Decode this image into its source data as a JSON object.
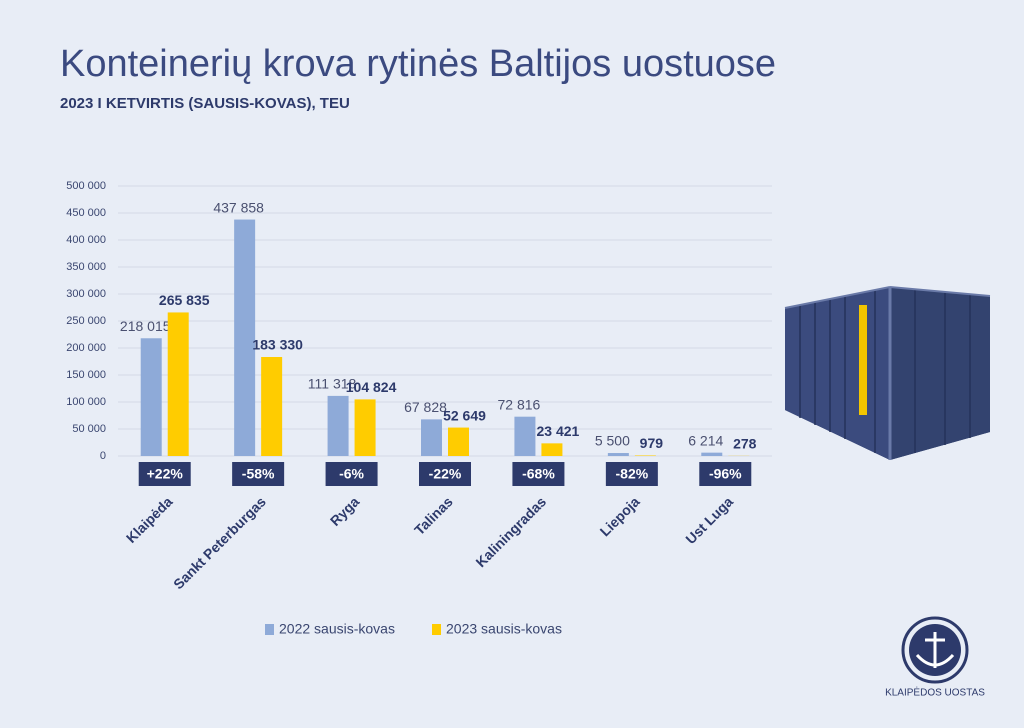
{
  "chart_data": {
    "type": "bar",
    "title": "Konteinerių krova rytinės Baltijos uostuose",
    "subtitle": "2023 I KETVIRTIS (SAUSIS-KOVAS), TEU",
    "categories": [
      "Klaipėda",
      "Sankt Peterburgas",
      "Ryga",
      "Talinas",
      "Kaliningradas",
      "Liepoja",
      "Ust Luga"
    ],
    "series": [
      {
        "name": "2022 sausis-kovas",
        "color": "#8eaad8",
        "values": [
          218015,
          437858,
          111318,
          67828,
          72816,
          5500,
          6214
        ],
        "value_labels": [
          "218 015",
          "437 858",
          "111 318",
          "67 828",
          "72 816",
          "5 500",
          "6 214"
        ]
      },
      {
        "name": "2023 sausis-kovas",
        "color": "#ffcc00",
        "values": [
          265835,
          183330,
          104824,
          52649,
          23421,
          979,
          278
        ],
        "value_labels": [
          "265 835",
          "183 330",
          "104 824",
          "52 649",
          "23 421",
          "979",
          "278"
        ]
      }
    ],
    "change_labels": [
      "+22%",
      "-58%",
      "-6%",
      "-22%",
      "-68%",
      "-82%",
      "-96%"
    ],
    "ylim": [
      0,
      500000
    ],
    "yticks": [
      0,
      {
        "value": 50000,
        "label": "50 000"
      },
      {
        "value": 100000,
        "label": "100 000"
      },
      {
        "value": 150000,
        "label": "150 000"
      },
      {
        "value": 200000,
        "label": "200 000"
      },
      {
        "value": 250000,
        "label": "250 000"
      },
      {
        "value": 300000,
        "label": "300 000"
      },
      {
        "value": 350000,
        "label": "350 000"
      },
      {
        "value": 400000,
        "label": "400 000"
      },
      {
        "value": 450000,
        "label": "450 000"
      },
      {
        "value": 500000,
        "label": "500 000"
      }
    ],
    "grid": true,
    "legend": "bottom"
  },
  "logo": {
    "text": "KLAIPĖDOS UOSTAS"
  }
}
